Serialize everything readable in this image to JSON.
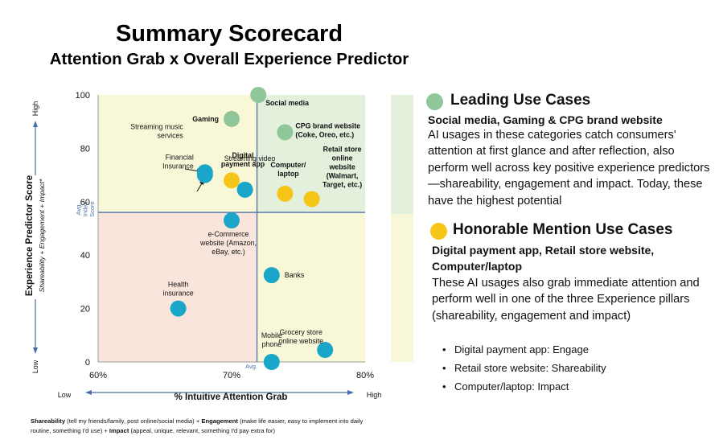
{
  "title": "Summary Scorecard",
  "subtitle": "Attention Grab x Overall Experience Predictor",
  "colors": {
    "leading": "#8fc79b",
    "honorable": "#f5c518",
    "other": "#1aa6c8",
    "zone_green": "#e3f0dc",
    "zone_yellow": "#f8f8d8",
    "zone_red": "#fae5dd",
    "avg_line": "#4a6fa5"
  },
  "chart_data": {
    "type": "scatter",
    "title": "",
    "xlabel": "% Intuitive Attention Grab",
    "ylabel": "Experience Predictor Score",
    "ylabel_sub": "Shareability + Engagement + Impact*",
    "xlim": [
      0.6,
      0.8
    ],
    "ylim": [
      0,
      100
    ],
    "x_ticks": [
      {
        "v": 0.6,
        "label": "60%"
      },
      {
        "v": 0.7,
        "label": "70%"
      },
      {
        "v": 0.8,
        "label": "80%"
      }
    ],
    "y_ticks": [
      0,
      20,
      40,
      60,
      80,
      100
    ],
    "x_low": "Low",
    "x_high": "High",
    "y_low": "Low",
    "y_high": "High",
    "avg_x": 0.719,
    "avg_y": 56,
    "avg_x_label": "Avg.",
    "avg_y_label": [
      "Avg.",
      "Index",
      "Score"
    ],
    "points": [
      {
        "name": "Social media",
        "label": [
          "Social media"
        ],
        "x": 0.72,
        "y": 100,
        "group": "leading"
      },
      {
        "name": "Gaming",
        "label": [
          "Gaming"
        ],
        "x": 0.7,
        "y": 91,
        "group": "leading"
      },
      {
        "name": "CPG brand website",
        "label": [
          "CPG brand website",
          "(Coke, Oreo, etc.)"
        ],
        "x": 0.74,
        "y": 86,
        "group": "leading"
      },
      {
        "name": "Streaming music services",
        "label": [
          "Streaming music",
          "services"
        ],
        "x": 0.68,
        "y": 71,
        "group": "other"
      },
      {
        "name": "Financial Insurance",
        "label": [
          "Financial",
          "Insurance"
        ],
        "x": 0.68,
        "y": 70,
        "group": "other"
      },
      {
        "name": "Digital payment app",
        "label": [
          "Digital",
          "payment app"
        ],
        "x": 0.7,
        "y": 68,
        "group": "honorable"
      },
      {
        "name": "Streaming video",
        "label": [
          "Streaming video"
        ],
        "x": 0.71,
        "y": 64.5,
        "group": "other"
      },
      {
        "name": "Computer/laptop",
        "label": [
          "Computer/",
          "laptop"
        ],
        "x": 0.74,
        "y": 63,
        "group": "honorable"
      },
      {
        "name": "Retail store online website",
        "label": [
          "Retail store",
          "online",
          "website",
          "(Walmart,",
          "Target, etc.)"
        ],
        "x": 0.76,
        "y": 61,
        "group": "honorable"
      },
      {
        "name": "e-Commerce website",
        "label": [
          "e-Commerce",
          "website (Amazon,",
          "eBay, etc.)"
        ],
        "x": 0.7,
        "y": 53,
        "group": "other"
      },
      {
        "name": "Banks",
        "label": [
          "Banks"
        ],
        "x": 0.73,
        "y": 32.5,
        "group": "other"
      },
      {
        "name": "Health insurance",
        "label": [
          "Health",
          "insurance"
        ],
        "x": 0.66,
        "y": 20,
        "group": "other"
      },
      {
        "name": "Grocery store online website",
        "label": [
          "Grocery store",
          "online website"
        ],
        "x": 0.77,
        "y": 4.5,
        "group": "other"
      },
      {
        "name": "Mobile phone",
        "label": [
          "Mobile",
          "phone"
        ],
        "x": 0.73,
        "y": 0,
        "group": "other"
      }
    ]
  },
  "footnote": {
    "shareability_label": "Shareability",
    "shareability_text": " (tell my friends/family, post online/social media) + ",
    "engagement_label": "Engagement",
    "engagement_text": " (make life easier, easy to implement into daily routine, something I'd use) + ",
    "impact_label": "Impact",
    "impact_text": " (appeal, unique, relevant, something I'd pay extra for)"
  },
  "leading": {
    "heading": "Leading Use Cases",
    "subheading": "Social media, Gaming & CPG brand website",
    "body": "AI usages in these categories catch consumers' attention at first glance and after reflection, also perform well across key positive experience predictors—shareability, engagement and impact. Today, these have the highest potential"
  },
  "honorable": {
    "heading": "Honorable Mention Use Cases",
    "subheading": "Digital payment app, Retail store website, Computer/laptop",
    "body": "These AI usages also grab immediate attention and perform well in one of the three Experience pillars (shareability, engagement and impact)",
    "bullets": [
      "Digital payment app: Engage",
      "Retail store website: Shareability",
      "Computer/laptop: Impact"
    ]
  }
}
